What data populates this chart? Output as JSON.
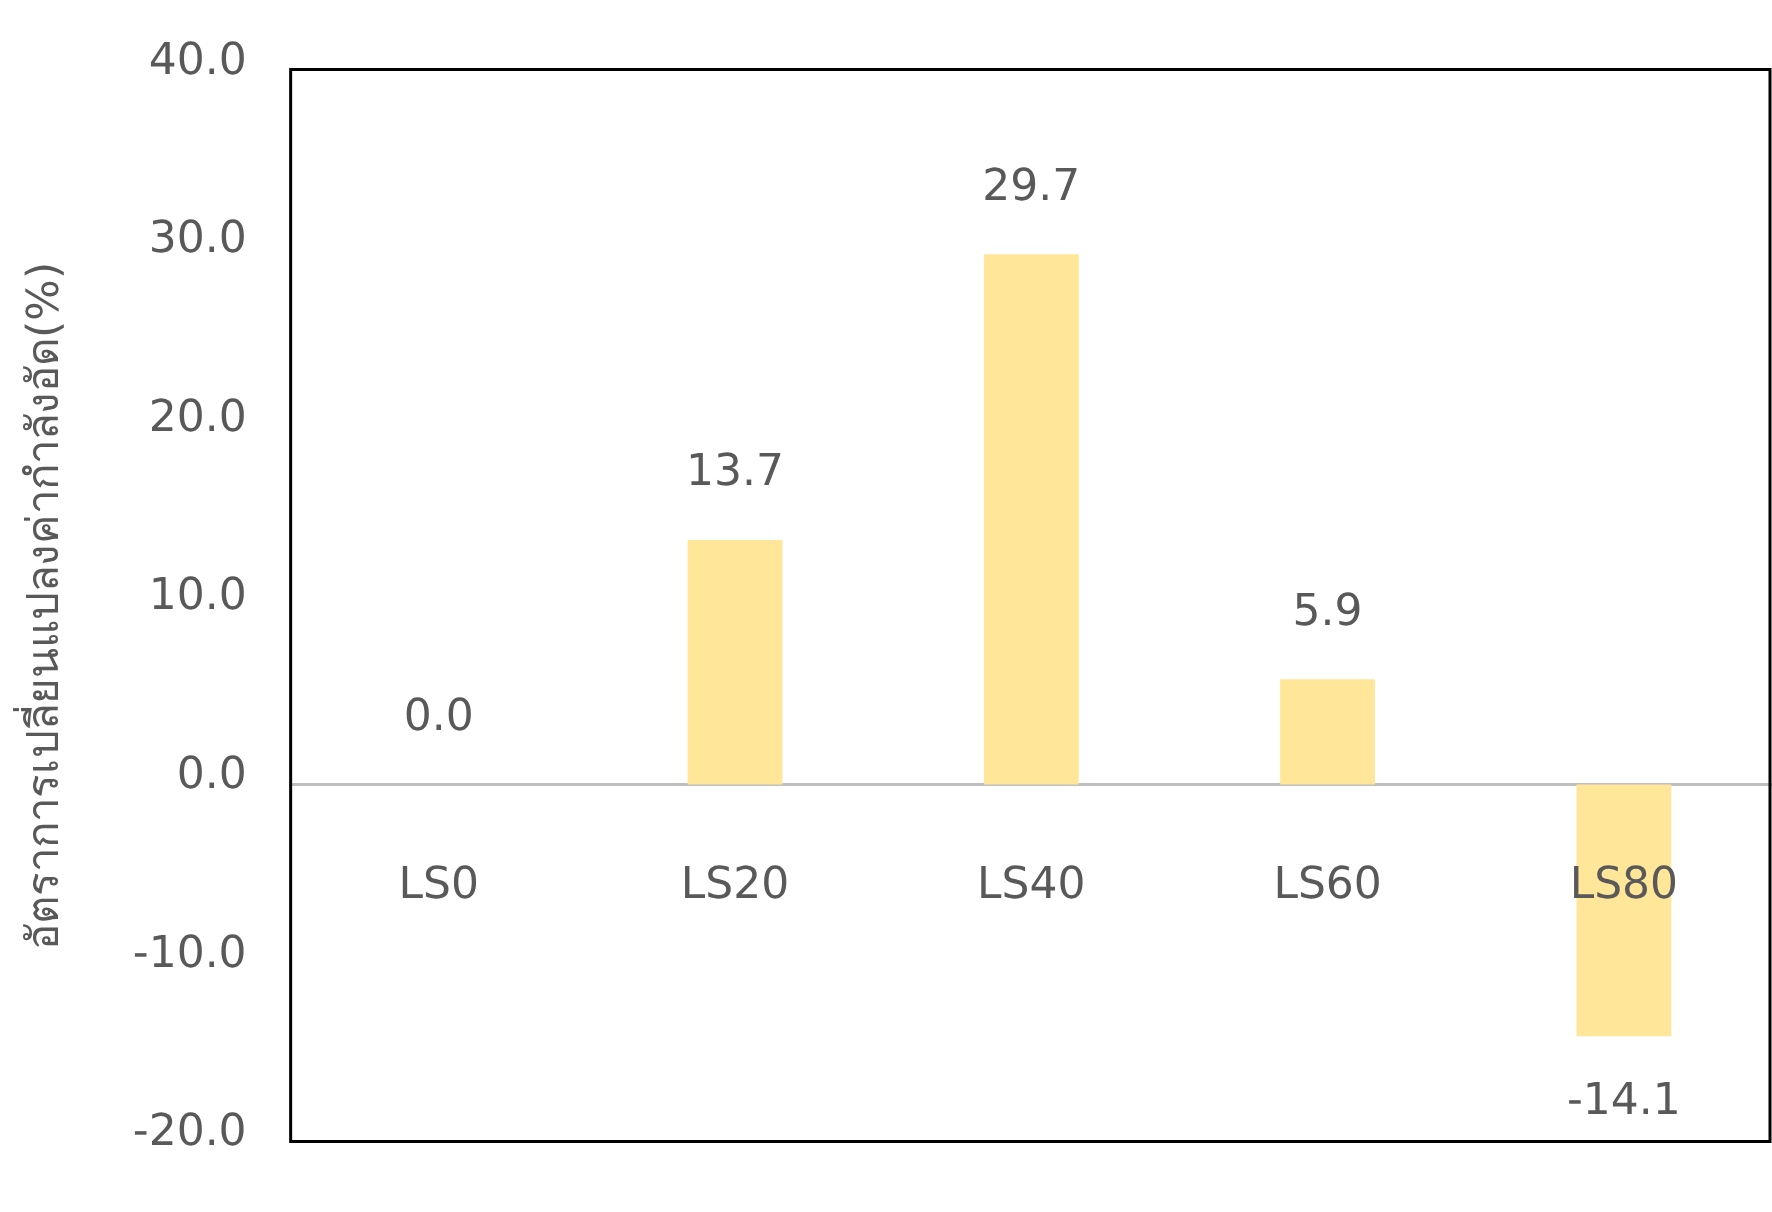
{
  "chart_data": {
    "type": "bar",
    "ylabel": "อัตราการเปลี่ยนแปลงค่ากำลังอัด(%)",
    "categories": [
      "LS0",
      "LS20",
      "LS40",
      "LS60",
      "LS80"
    ],
    "values": [
      0.0,
      13.7,
      29.7,
      5.9,
      -14.1
    ],
    "color": "#ffe699",
    "ylim": [
      -20,
      40
    ],
    "yticks": [
      {
        "value": -20,
        "label": "-20.0"
      },
      {
        "value": -10,
        "label": "-10.0"
      },
      {
        "value": 0,
        "label": "0.0"
      },
      {
        "value": 10,
        "label": "10.0"
      },
      {
        "value": 20,
        "label": "20.0"
      },
      {
        "value": 30,
        "label": "30.0"
      },
      {
        "value": 40,
        "label": "40.0"
      }
    ],
    "value_labels": [
      "0.0",
      "13.7",
      "29.7",
      "5.9",
      "-14.1"
    ],
    "grid": false,
    "legend": false
  }
}
